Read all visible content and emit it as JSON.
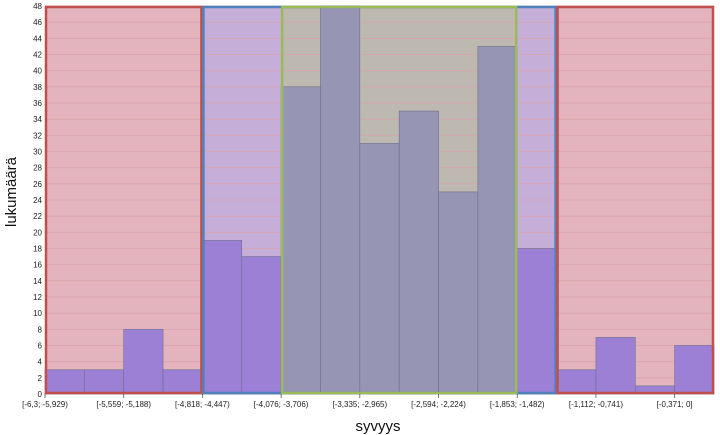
{
  "chart_data": {
    "type": "bar",
    "xlabel": "syvyys",
    "ylabel": "lukumäärä",
    "ylim": [
      0,
      48
    ],
    "ytick_step": 2,
    "grid": true,
    "bin_count": 17,
    "x_tick_labels": [
      {
        "bin": 0,
        "label": "[-6,3; -5,929)"
      },
      {
        "bin": 2,
        "label": "[-5,559; -5,188)"
      },
      {
        "bin": 4,
        "label": "[-4,818; -4,447)"
      },
      {
        "bin": 6,
        "label": "[-4,076; -3,706)"
      },
      {
        "bin": 8,
        "label": "[-3,335; -2,965)"
      },
      {
        "bin": 10,
        "label": "[-2,594; -2,224)"
      },
      {
        "bin": 12,
        "label": "[-1,853; -1,482)"
      },
      {
        "bin": 14,
        "label": "[-1,112; -0,741)"
      },
      {
        "bin": 16,
        "label": "[-0,371; 0]"
      }
    ],
    "values": [
      3,
      3,
      8,
      3,
      19,
      17,
      38,
      48,
      31,
      35,
      25,
      43,
      18,
      3,
      7,
      1,
      6
    ],
    "regions": [
      {
        "from_bin": 0,
        "to_bin": 3,
        "fill": "#e3b4bd",
        "border": "#c0504d"
      },
      {
        "from_bin": 4,
        "to_bin": 12,
        "fill": "#c5aed8",
        "border": "#4f81bd"
      },
      {
        "from_bin": 6,
        "to_bin": 11,
        "fill": "#bdb8b0",
        "border": "#9bbb59"
      },
      {
        "from_bin": 13,
        "to_bin": 16,
        "fill": "#e3b4bd",
        "border": "#c0504d"
      }
    ],
    "bar_colors": {
      "default": "#9b80d6",
      "inner": "#9696b4"
    },
    "grid_color": "#d9a3ad"
  }
}
